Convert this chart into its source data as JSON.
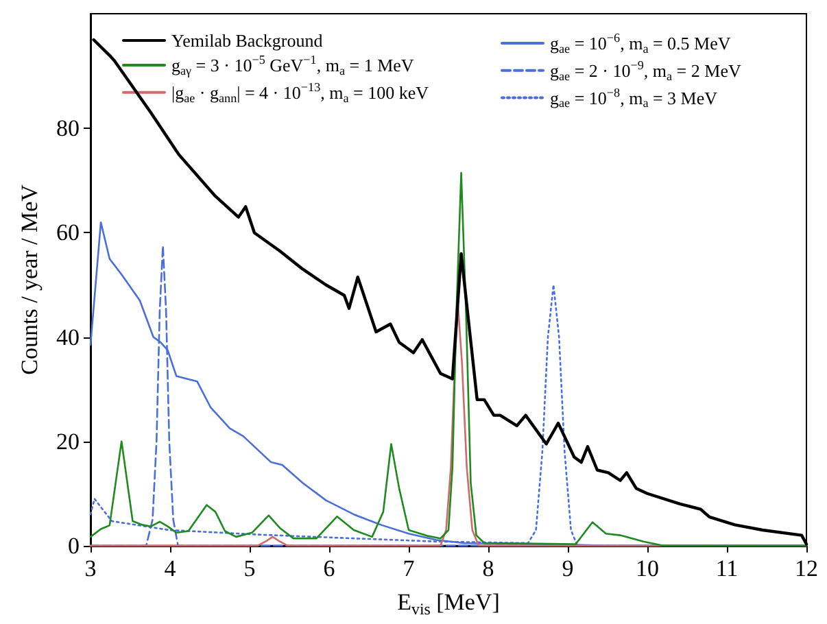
{
  "chart_data": {
    "type": "line",
    "xlabel": "E$_{vis}$ [MeV]",
    "ylabel": "Counts / year / MeV",
    "xlim": [
      3,
      12
    ],
    "xticks": [
      3,
      4,
      5,
      6,
      7,
      8,
      9,
      10,
      11,
      12
    ],
    "ylim": [
      0,
      102
    ],
    "yticks": [
      0,
      20,
      40,
      60,
      80
    ],
    "grid": false,
    "legend": "top",
    "marker": "none",
    "series": [
      {
        "name": "Yemilab Background",
        "color": "#000000",
        "line_style": "solid",
        "x": [
          3.04,
          3.24,
          3.3,
          3.76,
          4.11,
          4.57,
          4.86,
          4.95,
          5.06,
          5.38,
          5.67,
          5.96,
          6.19,
          6.25,
          6.36,
          6.59,
          6.77,
          6.88,
          7.06,
          7.17,
          7.4,
          7.55,
          7.66,
          7.86,
          7.95,
          8.07,
          8.15,
          8.36,
          8.47,
          8.73,
          8.88,
          9.08,
          9.17,
          9.25,
          9.37,
          9.51,
          9.66,
          9.74,
          9.86,
          10.0,
          10.41,
          10.67,
          10.78,
          11.1,
          11.45,
          11.94,
          12.0
        ],
        "values": [
          97,
          94,
          93,
          83,
          75,
          67,
          63,
          65,
          60,
          56.5,
          53,
          50,
          48,
          45.5,
          51.5,
          41,
          42.5,
          39,
          37,
          39.5,
          33,
          32,
          56,
          28,
          28,
          25,
          25,
          23,
          25,
          19.5,
          23.5,
          17,
          16,
          19,
          14.5,
          14,
          12.5,
          14,
          11,
          10,
          8,
          7,
          5.5,
          4,
          3,
          2,
          0.3
        ]
      },
      {
        "name": "g$_{aγ}$ = 3 · 10$^{−5}$ GeV$^{−1}$, m$_{a}$ = 1 MeV",
        "color": "#1f8a1f",
        "line_style": "solid",
        "x": [
          3.0,
          3.13,
          3.24,
          3.39,
          3.53,
          3.65,
          3.76,
          3.87,
          3.97,
          4.08,
          4.23,
          4.46,
          4.57,
          4.69,
          4.83,
          5.03,
          5.24,
          5.38,
          5.55,
          5.84,
          6.1,
          6.31,
          6.54,
          6.68,
          6.78,
          6.88,
          7.0,
          7.23,
          7.4,
          7.5,
          7.55,
          7.6,
          7.66,
          7.72,
          7.78,
          7.85,
          7.95,
          9.1,
          9.31,
          9.48,
          9.66,
          9.95,
          10.2,
          12.0
        ],
        "values": [
          1.7,
          3.2,
          3.9,
          20,
          4.7,
          4,
          3.7,
          4.6,
          3.7,
          2.5,
          2.8,
          7.8,
          6.5,
          2.8,
          1.7,
          2.5,
          5.8,
          3.4,
          1.4,
          1.4,
          5.6,
          3,
          1.7,
          6.5,
          19.5,
          11,
          3,
          1.9,
          1.4,
          3,
          15,
          45,
          71.5,
          45,
          12,
          2,
          0.5,
          0.3,
          4.5,
          2.3,
          2,
          0.8,
          0,
          0
        ]
      },
      {
        "name": "|g$_{ae}$ · g$_{ann}$| = 4 · 10$^{−13}$, m$_{a}$ = 100 keV",
        "color": "#cd6b6b",
        "line_style": "solid",
        "x": [
          3.0,
          5.1,
          5.2,
          5.29,
          5.38,
          5.48,
          7.4,
          7.47,
          7.53,
          7.58,
          7.62,
          7.67,
          7.73,
          7.8,
          7.88,
          12.0
        ],
        "values": [
          0,
          0,
          0.8,
          1.7,
          0.8,
          0,
          0,
          3,
          15,
          35,
          46,
          35,
          15,
          3,
          0,
          0
        ]
      },
      {
        "name": "g$_{ae}$ = 10$^{−6}$, m$_{a}$ = 0.5 MeV",
        "color": "#4a6fdc",
        "line_style": "solid",
        "x": [
          3.0,
          3.13,
          3.24,
          3.39,
          3.62,
          3.79,
          3.88,
          3.97,
          4.08,
          4.34,
          4.51,
          4.75,
          4.92,
          5.27,
          5.41,
          5.67,
          5.96,
          6.31,
          6.65,
          7.0,
          7.35,
          7.69,
          9.0,
          9.5,
          12.0
        ],
        "values": [
          38.5,
          62,
          55,
          52,
          47,
          40,
          39,
          37.5,
          32.5,
          31.5,
          26.5,
          22.5,
          21,
          16,
          15.5,
          12,
          8.7,
          6,
          4,
          2.3,
          1.1,
          0.5,
          0.2,
          0,
          0
        ]
      },
      {
        "name": "g$_{ae}$ = 2 · 10$^{−9}$, m$_{a}$ = 2 MeV",
        "color": "#4a6fdc",
        "line_style": "dashed",
        "x": [
          3.0,
          3.7,
          3.78,
          3.83,
          3.87,
          3.91,
          3.95,
          3.99,
          4.04,
          4.1,
          12.0
        ],
        "values": [
          0,
          0,
          5,
          20,
          45,
          57.5,
          45,
          20,
          5,
          0,
          0
        ]
      },
      {
        "name": "g$_{ae}$ = 10$^{−8}$, m$_{a}$ = 3 MeV",
        "color": "#4a6fdc",
        "line_style": "dotted",
        "x": [
          3.0,
          3.05,
          3.15,
          3.27,
          3.99,
          5.15,
          6.31,
          7.35,
          8.5,
          8.6,
          8.68,
          8.75,
          8.82,
          8.89,
          8.96,
          9.04,
          9.12,
          12.0
        ],
        "values": [
          6,
          9,
          7,
          4.7,
          3,
          2.1,
          1.4,
          0.8,
          0.5,
          3,
          18,
          40,
          50,
          40,
          18,
          3,
          0,
          0
        ]
      }
    ]
  }
}
